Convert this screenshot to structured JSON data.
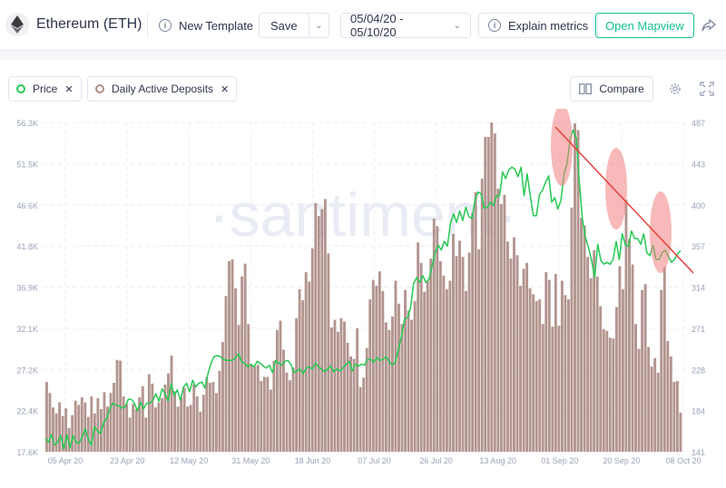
{
  "header": {
    "asset_title": "Ethereum (ETH)",
    "new_template": "New Template",
    "save": "Save",
    "date_range": "05/04/20 - 05/10/20",
    "explain_metrics": "Explain metrics",
    "open_mapview": "Open Mapview",
    "accent_color": "#14c393"
  },
  "metrics": [
    {
      "label": "Price",
      "color": "#26c953"
    },
    {
      "label": "Daily Active Deposits",
      "color": "#ad8c85"
    }
  ],
  "toolbar": {
    "compare": "Compare",
    "settings_icon": "gear-icon",
    "fullscreen_icon": "expand-icon"
  },
  "watermark": "·santiment·",
  "chart_data": {
    "type": "bar",
    "x_ticks": [
      "05 Apr 20",
      "23 Apr 20",
      "12 May 20",
      "31 May 20",
      "18 Jun 20",
      "07 Jul 20",
      "26 Jul 20",
      "13 Aug 20",
      "01 Sep 20",
      "20 Sep 20",
      "08 Oct 20"
    ],
    "y_left_ticks": [
      "56.3K",
      "51.5K",
      "46.6K",
      "41.8K",
      "36.9K",
      "32.1K",
      "27.2K",
      "22.4K",
      "17.6K"
    ],
    "y_right_ticks": [
      "487",
      "443",
      "400",
      "357",
      "314",
      "271",
      "228",
      "184",
      "141"
    ],
    "y_left_range": [
      17.6,
      56.3
    ],
    "y_right_range": [
      141,
      487
    ],
    "series": [
      {
        "name": "Daily Active Deposits",
        "axis": "left",
        "unit": "K",
        "values": [
          25.8,
          24.5,
          22.8,
          22.1,
          23.4,
          21.8,
          22.7,
          20.4,
          21.9,
          23.6,
          23.1,
          24.0,
          23.4,
          21.7,
          24.1,
          22.1,
          23.9,
          22.6,
          24.6,
          22.9,
          24.5,
          25.7,
          28.4,
          28.3,
          24.1,
          23.2,
          21.6,
          23.2,
          22.6,
          24.0,
          25.3,
          21.6,
          26.7,
          25.6,
          22.8,
          23.4,
          23.9,
          25.5,
          26.8,
          28.9,
          24.7,
          22.9,
          24.0,
          25.1,
          22.9,
          23.1,
          25.5,
          24.1,
          22.3,
          24.3,
          26.4,
          25.7,
          25.8,
          24.5,
          27.1,
          30.5,
          35.9,
          40.0,
          40.2,
          36.8,
          32.5,
          38.2,
          39.7,
          32.6,
          27.8,
          27.6,
          27.8,
          25.9,
          26.4,
          26.4,
          24.9,
          28.3,
          31.9,
          33.0,
          29.6,
          26.9,
          26.0,
          27.5,
          33.3,
          36.7,
          35.4,
          38.7,
          37.6,
          41.5,
          46.8,
          45.3,
          46.1,
          47.3,
          40.9,
          32.2,
          33.1,
          31.7,
          33.3,
          32.9,
          30.4,
          28.8,
          28.5,
          32.1,
          25.2,
          26.3,
          29.8,
          35.5,
          37.8,
          37.1,
          38.8,
          36.5,
          32.8,
          31.9,
          33.5,
          37.7,
          35.0,
          32.6,
          36.6,
          34.2,
          33.1,
          35.3,
          42.2,
          39.8,
          36.4,
          37.6,
          40.3,
          45.0,
          44.1,
          40.0,
          38.3,
          36.7,
          37.7,
          43.2,
          40.6,
          42.4,
          40.5,
          36.5,
          41.0,
          45.6,
          48.1,
          41.4,
          49.7,
          54.6,
          54.6,
          56.3,
          55.0,
          48.5,
          46.7,
          47.8,
          42.3,
          40.3,
          42.8,
          40.7,
          37.1,
          39.1,
          39.8,
          36.8,
          36.1,
          35.3,
          35.5,
          32.6,
          38.7,
          37.8,
          32.3,
          38.5,
          32.4,
          37.7,
          36.0,
          35.5,
          46.3,
          56.2,
          55.4,
          45.1,
          44.2,
          40.5,
          38.0,
          41.3,
          38.2,
          34.7,
          32.0,
          31.8,
          31.0,
          30.9,
          34.6,
          39.4,
          36.7,
          47.2,
          42.6,
          39.6,
          32.6,
          29.7,
          36.6,
          37.3,
          29.9,
          27.6,
          28.6,
          26.9,
          36.6,
          39.3,
          30.6,
          28.8,
          25.8,
          25.9,
          22.2
        ]
      },
      {
        "name": "Price",
        "axis": "right",
        "values": [
          155,
          151,
          159,
          148,
          151,
          158,
          144,
          159,
          145,
          158,
          151,
          150,
          157,
          165,
          154,
          148,
          167,
          163,
          160,
          172,
          176,
          186,
          192,
          190,
          189,
          187,
          188,
          196,
          196,
          192,
          184,
          193,
          186,
          192,
          192,
          195,
          202,
          194,
          207,
          202,
          194,
          213,
          200,
          206,
          195,
          209,
          213,
          204,
          216,
          209,
          213,
          214,
          208,
          223,
          234,
          241,
          242,
          241,
          238,
          237,
          237,
          237,
          240,
          244,
          235,
          234,
          230,
          233,
          230,
          236,
          234,
          231,
          229,
          232,
          224,
          237,
          234,
          232,
          236,
          237,
          233,
          224,
          226,
          228,
          223,
          229,
          230,
          228,
          234,
          230,
          228,
          225,
          228,
          231,
          225,
          228,
          226,
          229,
          233,
          236,
          226,
          233,
          231,
          233,
          232,
          238,
          238,
          235,
          240,
          237,
          238,
          241,
          236,
          232,
          235,
          248,
          262,
          280,
          282,
          292,
          318,
          324,
          319,
          326,
          319,
          322,
          336,
          350,
          358,
          353,
          362,
          357,
          381,
          391,
          382,
          394,
          384,
          398,
          388,
          386,
          405,
          414,
          412,
          397,
          398,
          403,
          400,
          410,
          410,
          435,
          428,
          437,
          440,
          438,
          430,
          440,
          410,
          433,
          410,
          389,
          389,
          411,
          416,
          424,
          431,
          403,
          408,
          396,
          405,
          433,
          444,
          470,
          479,
          470,
          425,
          385,
          366,
          355,
          342,
          324,
          359,
          342,
          338,
          340,
          338,
          343,
          362,
          343,
          370,
          358,
          357,
          373,
          365,
          365,
          359,
          370,
          350,
          347,
          358,
          343,
          343,
          350,
          353,
          346,
          340,
          343,
          349,
          352
        ]
      }
    ]
  },
  "annotations": {
    "trend_line_color": "#e53935",
    "highlight_color": "#f08080"
  }
}
